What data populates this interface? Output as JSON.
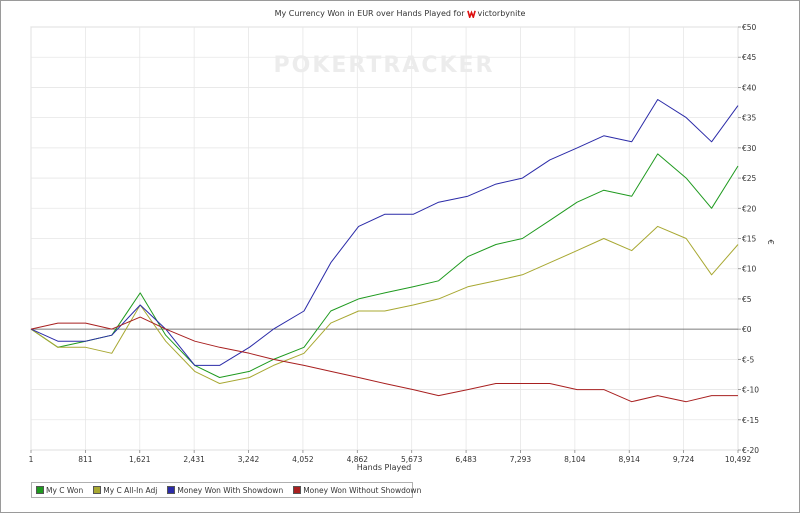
{
  "title": {
    "prefix": "My Currency Won in EUR over Hands Played for",
    "player": "victorbynite"
  },
  "watermark": "POKERTRACKER",
  "colors": {
    "grid": "#e6e6e6",
    "zero_line": "#555555",
    "my_c_won": "#1f9a1f",
    "all_in_adj": "#a8a832",
    "with_showdown": "#2b2ba8",
    "without_showdown": "#a82020"
  },
  "legend": [
    {
      "label": "My C Won",
      "color": "#1f9a1f"
    },
    {
      "label": "My C All-In Adj",
      "color": "#a8a832"
    },
    {
      "label": "Money Won With Showdown",
      "color": "#2b2ba8"
    },
    {
      "label": "Money Won Without Showdown",
      "color": "#a82020"
    }
  ],
  "chart_data": {
    "type": "line",
    "title": "My Currency Won in EUR over Hands Played for victorbynite",
    "xlabel": "Hands Played",
    "ylabel": "€",
    "xlim": [
      1,
      10492
    ],
    "ylim": [
      -20,
      50
    ],
    "grid": true,
    "legend_position": "bottom-left",
    "x_ticks": [
      "1",
      "811",
      "1,621",
      "2,431",
      "3,242",
      "4,052",
      "4,862",
      "5,673",
      "6,483",
      "7,293",
      "8,104",
      "8,914",
      "9,724",
      "10,492"
    ],
    "y_ticks": [
      "€50",
      "€45",
      "€40",
      "€35",
      "€30",
      "€25",
      "€20",
      "€15",
      "€10",
      "€5",
      "€0",
      "€-5",
      "€-10",
      "€-15",
      "€-20"
    ],
    "x": [
      1,
      400,
      811,
      1200,
      1621,
      2000,
      2431,
      2800,
      3242,
      3600,
      4052,
      4450,
      4862,
      5250,
      5673,
      6050,
      6483,
      6900,
      7293,
      7700,
      8104,
      8500,
      8914,
      9300,
      9724,
      10100,
      10492
    ],
    "series": [
      {
        "name": "My C Won",
        "values": [
          0,
          -3,
          -2,
          -1,
          6,
          -1,
          -6,
          -8,
          -7,
          -5,
          -3,
          3,
          5,
          6,
          7,
          8,
          12,
          14,
          15,
          18,
          21,
          23,
          22,
          29,
          25,
          20,
          27
        ]
      },
      {
        "name": "My C All-In Adj",
        "values": [
          0,
          -3,
          -3,
          -4,
          4,
          -2,
          -7,
          -9,
          -8,
          -6,
          -4,
          1,
          3,
          3,
          4,
          5,
          7,
          8,
          9,
          11,
          13,
          15,
          13,
          17,
          15,
          9,
          14
        ]
      },
      {
        "name": "Money Won With Showdown",
        "values": [
          0,
          -2,
          -2,
          -1,
          4,
          0,
          -6,
          -6,
          -3,
          0,
          3,
          11,
          17,
          19,
          19,
          21,
          22,
          24,
          25,
          28,
          30,
          32,
          31,
          38,
          35,
          31,
          37
        ]
      },
      {
        "name": "Money Won Without Showdown",
        "values": [
          0,
          1,
          1,
          0,
          2,
          0,
          -2,
          -3,
          -4,
          -5,
          -6,
          -7,
          -8,
          -9,
          -10,
          -11,
          -10,
          -9,
          -9,
          -9,
          -10,
          -10,
          -12,
          -11,
          -12,
          -11,
          -11
        ]
      }
    ]
  }
}
